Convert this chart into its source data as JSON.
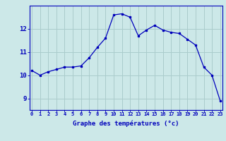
{
  "x": [
    0,
    1,
    2,
    3,
    4,
    5,
    6,
    7,
    8,
    9,
    10,
    11,
    12,
    13,
    14,
    15,
    16,
    17,
    18,
    19,
    20,
    21,
    22,
    23
  ],
  "y": [
    10.2,
    10.0,
    10.15,
    10.25,
    10.35,
    10.35,
    10.4,
    10.75,
    11.2,
    11.6,
    12.6,
    12.65,
    12.5,
    11.7,
    11.95,
    12.15,
    11.95,
    11.85,
    11.8,
    11.55,
    11.3,
    10.35,
    10.0,
    8.9
  ],
  "xlabel": "Graphe des températures (°c)",
  "xtick_labels": [
    "0",
    "1",
    "2",
    "3",
    "4",
    "5",
    "6",
    "7",
    "8",
    "9",
    "10",
    "11",
    "12",
    "13",
    "14",
    "15",
    "16",
    "17",
    "18",
    "19",
    "20",
    "21",
    "22",
    "23"
  ],
  "ytick_labels": [
    "9",
    "10",
    "11",
    "12"
  ],
  "yticks": [
    9,
    10,
    11,
    12
  ],
  "ylim": [
    8.5,
    13.0
  ],
  "xlim": [
    -0.3,
    23.3
  ],
  "line_color": "#0000bb",
  "marker": "s",
  "marker_size": 2.0,
  "bg_color": "#cce8e8",
  "grid_color": "#aacccc",
  "axis_color": "#0000bb",
  "label_color": "#0000bb",
  "tick_label_color": "#0000bb"
}
